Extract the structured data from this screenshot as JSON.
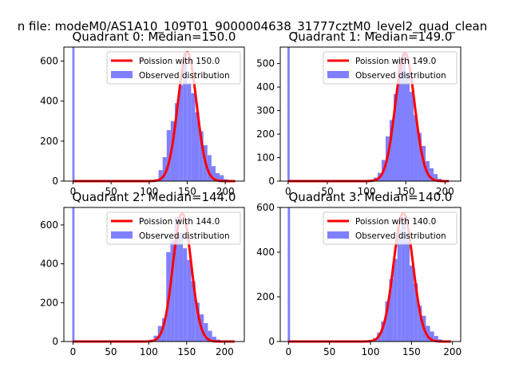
{
  "figure": {
    "suptitle": "n file: modeM0/AS1A10_109T01_9000004638_31777cztM0_level2_quad_clean"
  },
  "chart_data": [
    {
      "type": "bar",
      "title": "Quadrant 0: Median=150.0",
      "xlim": [
        -12,
        225
      ],
      "ylim": [
        0,
        670
      ],
      "xticks": [
        0,
        50,
        100,
        150,
        200
      ],
      "yticks": [
        0,
        200,
        400,
        600
      ],
      "legend": {
        "position": "top-right",
        "line_label": "Poission with 150.0",
        "bar_label": "Observed distribution"
      },
      "poisson_mean": 150.0,
      "poisson_peak": 645,
      "fit_range": [
        0,
        213
      ],
      "spike": {
        "x": 0,
        "value": 670
      },
      "histogram": {
        "bin_width": 5.35,
        "bin_starts": [
          107,
          112.35,
          117.7,
          123.05,
          128.4,
          133.75,
          139.1,
          144.45,
          149.8,
          155.15,
          160.5,
          165.85,
          171.2,
          176.55,
          181.9,
          187.25,
          192.6,
          197.95
        ],
        "values": [
          10,
          55,
          120,
          255,
          300,
          390,
          480,
          640,
          490,
          440,
          345,
          250,
          180,
          130,
          75,
          40,
          30,
          10
        ]
      },
      "colors": {
        "line": "#ff0000",
        "bars": "#8080ff"
      }
    },
    {
      "type": "bar",
      "title": "Quadrant 1: Median=149.0",
      "xlim": [
        -10,
        220
      ],
      "ylim": [
        0,
        570
      ],
      "xticks": [
        0,
        50,
        100,
        150,
        200
      ],
      "yticks": [
        0,
        100,
        200,
        300,
        400,
        500
      ],
      "legend": {
        "position": "top-right",
        "line_label": "Poission with 149.0",
        "bar_label": "Observed distribution"
      },
      "poisson_mean": 149.0,
      "poisson_peak": 545,
      "fit_range": [
        0,
        205
      ],
      "spike": {
        "x": 0,
        "value": 570
      },
      "histogram": {
        "bin_width": 5.1,
        "bin_starts": [
          109,
          114.1,
          119.2,
          124.3,
          129.4,
          134.5,
          139.6,
          144.7,
          149.8,
          154.9,
          160,
          165.1,
          170.2,
          175.3,
          180.4,
          185.5,
          190.6
        ],
        "values": [
          15,
          35,
          90,
          190,
          260,
          370,
          520,
          545,
          460,
          380,
          280,
          205,
          150,
          85,
          55,
          30,
          10
        ]
      },
      "colors": {
        "line": "#ff0000",
        "bars": "#8080ff"
      }
    },
    {
      "type": "bar",
      "title": "Quadrant 2: Median=144.0",
      "xlim": [
        -12,
        226
      ],
      "ylim": [
        0,
        690
      ],
      "xticks": [
        0,
        50,
        100,
        150,
        200
      ],
      "yticks": [
        0,
        200,
        400,
        600
      ],
      "legend": {
        "position": "top-right",
        "line_label": "Poission with 144.0",
        "bar_label": "Observed distribution"
      },
      "poisson_mean": 144.0,
      "poisson_peak": 660,
      "fit_range": [
        0,
        213
      ],
      "spike": {
        "x": 0,
        "value": 690
      },
      "histogram": {
        "bin_width": 5.5,
        "bin_starts": [
          101,
          106.5,
          112,
          117.5,
          123,
          128.5,
          134,
          139.5,
          145,
          150.5,
          156,
          161.5,
          167,
          172.5,
          178,
          183.5,
          189
        ],
        "values": [
          10,
          30,
          80,
          120,
          460,
          520,
          640,
          560,
          480,
          420,
          310,
          200,
          140,
          95,
          55,
          25,
          10
        ]
      },
      "colors": {
        "line": "#ff0000",
        "bars": "#8080ff"
      }
    },
    {
      "type": "bar",
      "title": "Quadrant 3: Median=140.0",
      "xlim": [
        -10,
        210
      ],
      "ylim": [
        0,
        600
      ],
      "xticks": [
        0,
        50,
        100,
        150,
        200
      ],
      "yticks": [
        0,
        200,
        400,
        600
      ],
      "legend": {
        "position": "top-right",
        "line_label": "Poission with 140.0",
        "bar_label": "Observed distribution"
      },
      "poisson_mean": 140.0,
      "poisson_peak": 575,
      "fit_range": [
        0,
        198
      ],
      "spike": {
        "x": 0,
        "value": 600
      },
      "histogram": {
        "bin_width": 4.97,
        "bin_starts": [
          103,
          107.97,
          112.94,
          117.91,
          122.88,
          127.85,
          132.82,
          137.79,
          142.76,
          147.73,
          152.7,
          157.67,
          162.64,
          167.61,
          172.58,
          177.55,
          182.52
        ],
        "values": [
          15,
          40,
          90,
          180,
          280,
          370,
          500,
          555,
          480,
          340,
          260,
          160,
          115,
          70,
          45,
          25,
          10
        ]
      },
      "colors": {
        "line": "#ff0000",
        "bars": "#8080ff"
      }
    }
  ]
}
